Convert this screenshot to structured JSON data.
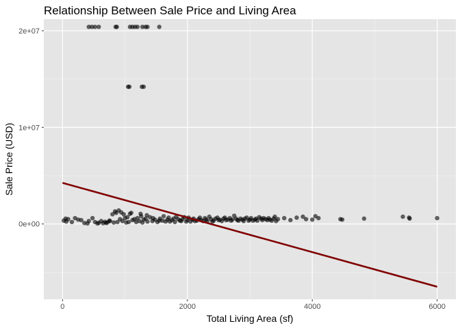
{
  "chart_data": {
    "type": "scatter",
    "title": "Relationship Between Sale Price and Living Area",
    "xlabel": "Total Living Area (sf)",
    "ylabel": "Sale Price (USD)",
    "xlim": [
      -300,
      6300
    ],
    "ylim": [
      -7800000,
      21200000
    ],
    "x_ticks": [
      0,
      2000,
      4000,
      6000
    ],
    "x_tick_labels": [
      "0",
      "2000",
      "4000",
      "6000"
    ],
    "y_ticks": [
      0,
      10000000,
      20000000
    ],
    "y_tick_labels": [
      "0e+00",
      "1e+07",
      "2e+07"
    ],
    "grid": true,
    "background": "#e5e5e5",
    "point_color": "#000000",
    "point_opacity": 0.6,
    "series": [
      {
        "kind": "points",
        "points": [
          [
            420,
            20400000
          ],
          [
            470,
            20400000
          ],
          [
            520,
            20400000
          ],
          [
            580,
            20400000
          ],
          [
            850,
            20400000
          ],
          [
            870,
            20400000
          ],
          [
            1080,
            20400000
          ],
          [
            1120,
            20400000
          ],
          [
            1160,
            20400000
          ],
          [
            1200,
            20400000
          ],
          [
            1280,
            20400000
          ],
          [
            1330,
            20400000
          ],
          [
            1360,
            20400000
          ],
          [
            1550,
            20400000
          ],
          [
            1050,
            14200000
          ],
          [
            1070,
            14200000
          ],
          [
            1270,
            14200000
          ],
          [
            1300,
            14200000
          ],
          [
            20,
            350000
          ],
          [
            50,
            550000
          ],
          [
            60,
            250000
          ],
          [
            90,
            500000
          ],
          [
            150,
            200000
          ],
          [
            300,
            400000
          ],
          [
            350,
            100000
          ],
          [
            400,
            50000
          ],
          [
            420,
            300000
          ],
          [
            480,
            600000
          ],
          [
            520,
            200000
          ],
          [
            560,
            50000
          ],
          [
            580,
            120000
          ],
          [
            620,
            300000
          ],
          [
            650,
            80000
          ],
          [
            680,
            220000
          ],
          [
            720,
            160000
          ],
          [
            760,
            300000
          ],
          [
            800,
            1000000
          ],
          [
            820,
            150000
          ],
          [
            840,
            1300000
          ],
          [
            860,
            1150000
          ],
          [
            880,
            200000
          ],
          [
            900,
            1400000
          ],
          [
            920,
            500000
          ],
          [
            940,
            1200000
          ],
          [
            960,
            300000
          ],
          [
            980,
            1000000
          ],
          [
            1000,
            600000
          ],
          [
            1020,
            150000
          ],
          [
            1040,
            700000
          ],
          [
            1060,
            200000
          ],
          [
            1080,
            1050000
          ],
          [
            1100,
            1150000
          ],
          [
            1120,
            400000
          ],
          [
            1150,
            500000
          ],
          [
            1180,
            200000
          ],
          [
            1200,
            600000
          ],
          [
            1230,
            300000
          ],
          [
            1260,
            800000
          ],
          [
            1280,
            150000
          ],
          [
            1300,
            450000
          ],
          [
            1330,
            550000
          ],
          [
            1360,
            250000
          ],
          [
            1400,
            700000
          ],
          [
            1440,
            300000
          ],
          [
            1480,
            450000
          ],
          [
            1520,
            200000
          ],
          [
            1560,
            550000
          ],
          [
            1600,
            350000
          ],
          [
            1650,
            250000
          ],
          [
            1700,
            650000
          ],
          [
            1750,
            400000
          ],
          [
            1800,
            200000
          ],
          [
            1850,
            500000
          ],
          [
            1900,
            300000
          ],
          [
            1950,
            700000
          ],
          [
            2000,
            400000
          ],
          [
            2050,
            250000
          ],
          [
            2100,
            550000
          ],
          [
            2150,
            350000
          ],
          [
            2200,
            650000
          ],
          [
            2250,
            300000
          ],
          [
            2300,
            450000
          ],
          [
            2350,
            750000
          ],
          [
            2400,
            250000
          ],
          [
            2450,
            550000
          ],
          [
            2500,
            400000
          ],
          [
            2550,
            300000
          ],
          [
            2600,
            650000
          ],
          [
            2650,
            450000
          ],
          [
            2700,
            350000
          ],
          [
            2750,
            850000
          ],
          [
            2800,
            400000
          ],
          [
            2850,
            550000
          ],
          [
            2900,
            300000
          ],
          [
            2950,
            650000
          ],
          [
            3000,
            450000
          ],
          [
            3050,
            350000
          ],
          [
            3100,
            550000
          ],
          [
            3150,
            700000
          ],
          [
            3200,
            400000
          ],
          [
            3250,
            500000
          ],
          [
            3300,
            600000
          ],
          [
            3350,
            350000
          ],
          [
            3400,
            750000
          ],
          [
            3450,
            500000
          ],
          [
            3550,
            600000
          ],
          [
            3650,
            400000
          ],
          [
            3750,
            650000
          ],
          [
            3850,
            750000
          ],
          [
            3900,
            500000
          ],
          [
            4000,
            450000
          ],
          [
            4050,
            800000
          ],
          [
            4100,
            600000
          ],
          [
            4450,
            500000
          ],
          [
            4480,
            450000
          ],
          [
            4830,
            550000
          ],
          [
            5450,
            750000
          ],
          [
            5550,
            650000
          ],
          [
            5560,
            550000
          ],
          [
            6000,
            600000
          ],
          [
            200,
            600000
          ],
          [
            250,
            450000
          ],
          [
            700,
            100000
          ],
          [
            750,
            350000
          ],
          [
            1250,
            1050000
          ],
          [
            1350,
            900000
          ],
          [
            1450,
            600000
          ],
          [
            1550,
            350000
          ],
          [
            1620,
            800000
          ],
          [
            1680,
            450000
          ],
          [
            1720,
            250000
          ],
          [
            1780,
            550000
          ],
          [
            1820,
            750000
          ],
          [
            1880,
            350000
          ],
          [
            1920,
            500000
          ],
          [
            1980,
            250000
          ],
          [
            2020,
            650000
          ],
          [
            2080,
            450000
          ],
          [
            2120,
            300000
          ],
          [
            2180,
            500000
          ],
          [
            2220,
            400000
          ],
          [
            2280,
            600000
          ],
          [
            2320,
            300000
          ],
          [
            2380,
            500000
          ],
          [
            2420,
            350000
          ],
          [
            2480,
            650000
          ],
          [
            2520,
            450000
          ],
          [
            2580,
            550000
          ],
          [
            2620,
            400000
          ],
          [
            2680,
            600000
          ],
          [
            2720,
            450000
          ],
          [
            2780,
            550000
          ],
          [
            2820,
            350000
          ],
          [
            2880,
            450000
          ],
          [
            2920,
            550000
          ],
          [
            2980,
            350000
          ],
          [
            3020,
            600000
          ],
          [
            3080,
            450000
          ],
          [
            3120,
            350000
          ],
          [
            3180,
            550000
          ],
          [
            3220,
            600000
          ],
          [
            3280,
            400000
          ],
          [
            3320,
            450000
          ],
          [
            3380,
            550000
          ],
          [
            3420,
            300000
          ]
        ]
      },
      {
        "kind": "fit-line",
        "color": "#800000",
        "points": [
          [
            0,
            4250000
          ],
          [
            6000,
            -6500000
          ]
        ]
      }
    ]
  }
}
